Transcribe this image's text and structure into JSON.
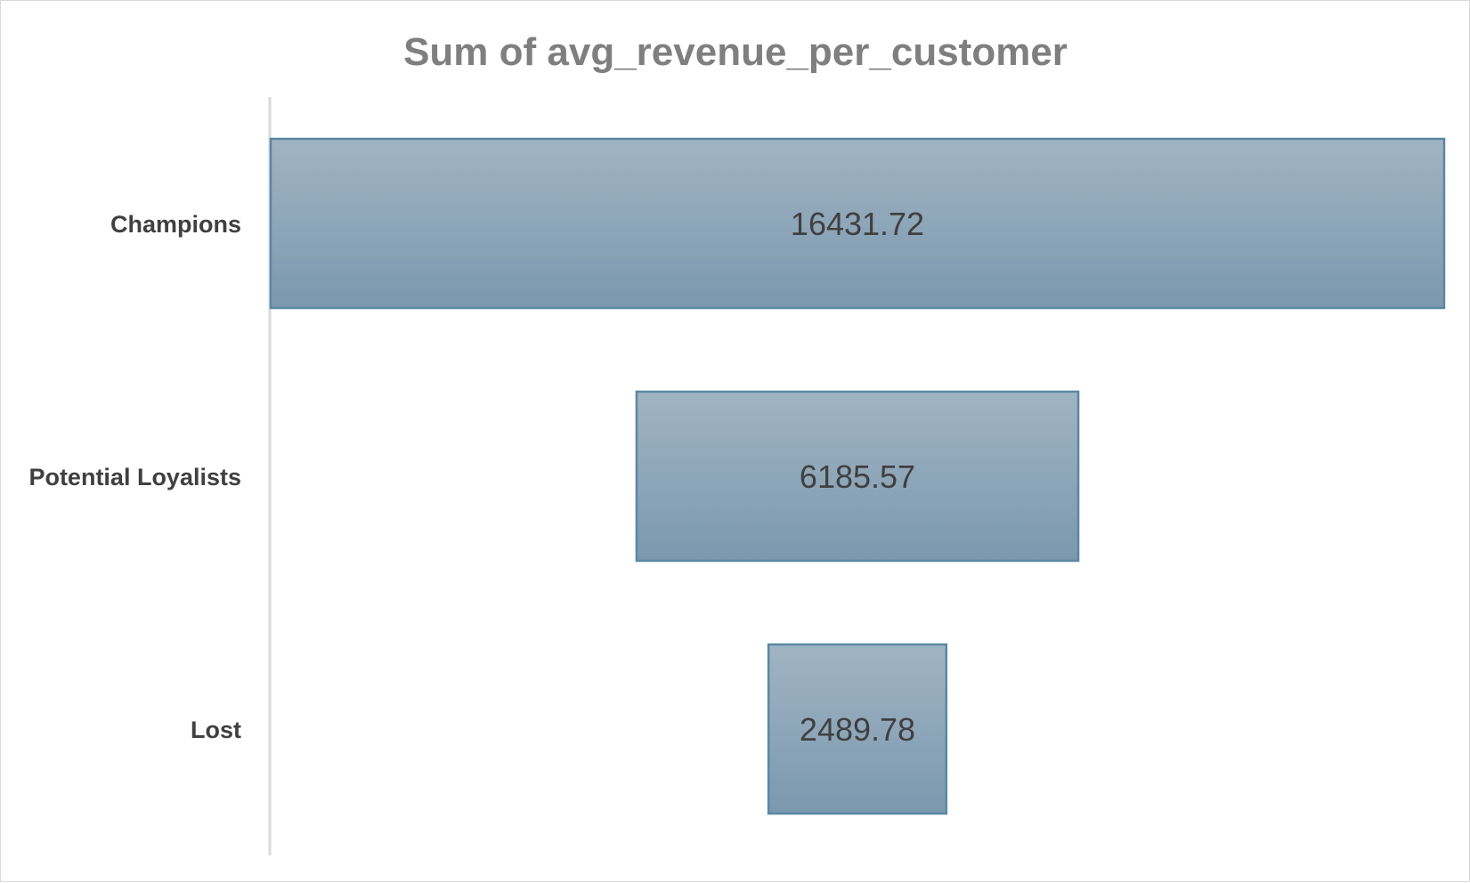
{
  "chart_data": {
    "type": "bar",
    "subtype": "funnel",
    "title": "Sum of avg_revenue_per_customer",
    "categories": [
      "Champions",
      "Potential Loyalists",
      "Lost"
    ],
    "values": [
      16431.72,
      6185.57,
      2489.78
    ],
    "value_labels": [
      "16431.72",
      "6185.57",
      "2489.78"
    ],
    "xlabel": "",
    "ylabel": "",
    "grid": false,
    "legend": "none",
    "colors": {
      "bar_fill_top": "#a0b4c3",
      "bar_fill_bottom": "#7b98ae",
      "bar_stroke": "#5a88a3",
      "axis_line": "#d9d9d9",
      "title": "#7f7f7f",
      "label": "#404040"
    }
  }
}
